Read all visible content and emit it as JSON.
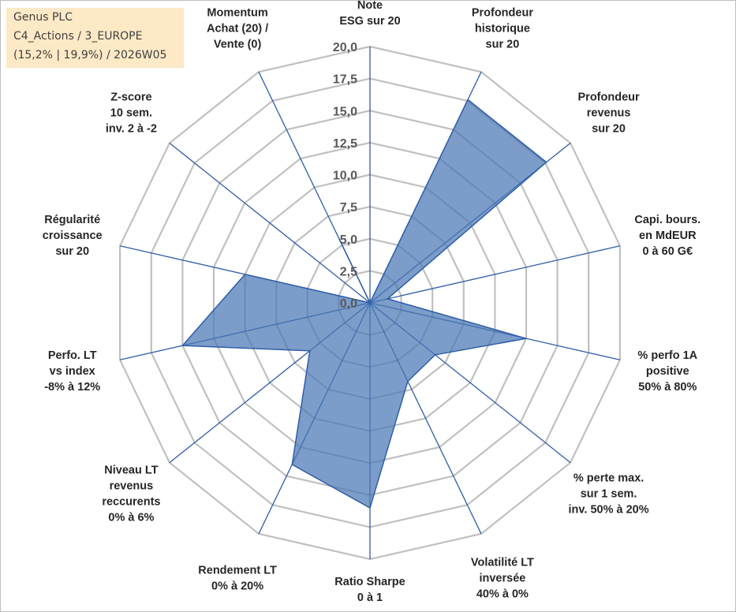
{
  "info_box": {
    "line1": "Genus PLC",
    "line2": "C4_Actions / 3_EUROPE",
    "line3": "(15,2% | 19,9%) / 2026W05"
  },
  "colors": {
    "series_fill": "#4a77b4",
    "series_stroke": "#2f5ea8",
    "grid": "#c0c0c0",
    "info_box_bg": "#fde9c6"
  },
  "chart_data": {
    "type": "radar",
    "title": "",
    "rmin": 0,
    "rmax": 20,
    "tick_step": 2.5,
    "tick_labels": [
      "0,0",
      "2,5",
      "5,0",
      "7,5",
      "10,0",
      "12,5",
      "15,0",
      "17,5",
      "20,0"
    ],
    "axes": [
      [
        "Note",
        "ESG sur 20"
      ],
      [
        "Profondeur",
        "historique",
        "sur 20"
      ],
      [
        "Profondeur",
        "revenus",
        "sur 20"
      ],
      [
        "Capi. bours.",
        "en MdEUR",
        "0 à 60 G€"
      ],
      [
        "% perfo 1A",
        "positive",
        "50% à 80%"
      ],
      [
        "% perte max.",
        "sur 1 sem.",
        "inv. 50% à 20%"
      ],
      [
        "Volatilité LT",
        "inversée",
        "40% à 0%"
      ],
      [
        "Ratio Sharpe",
        "0 à 1"
      ],
      [
        "Rendement LT",
        "0% à 20%"
      ],
      [
        "Niveau LT",
        "revenus",
        "reccurents",
        "0% à 6%"
      ],
      [
        "Perfo. LT",
        "vs index",
        "-8% à 12%"
      ],
      [
        "Régularité",
        "croissance",
        "sur 20"
      ],
      [
        "Z-score",
        "10 sem.",
        "inv. 2 à -2"
      ],
      [
        "Momentum",
        "Achat (20) /",
        "Vente (0)"
      ]
    ],
    "series": [
      {
        "name": "Genus PLC",
        "values": [
          0,
          17.6,
          17.6,
          1.4,
          12.5,
          6.5,
          6.8,
          16,
          14,
          6,
          15,
          10,
          0,
          5.5
        ]
      }
    ]
  }
}
